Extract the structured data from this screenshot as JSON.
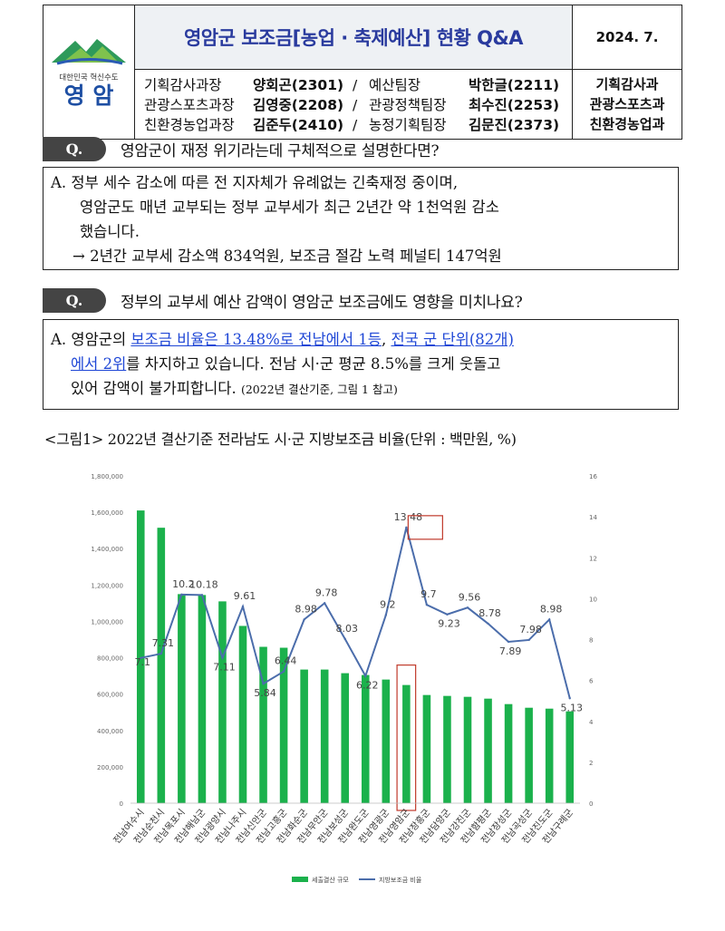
{
  "header": {
    "logo_slogan": "대한민국 혁신수도",
    "logo_name": "영 암",
    "title": "영암군 보조금[농업 · 축제예산] 현황 Q&A",
    "date": "2024. 7.",
    "staff": [
      {
        "dept": "기획감사과장",
        "name": "양회곤(2301)",
        "sep": "/",
        "team": "예산팀장",
        "team_name": "박한글(2211)"
      },
      {
        "dept": "관광스포츠과장",
        "name": "김영중(2208)",
        "sep": "/",
        "team": "관광정책팀장",
        "team_name": "최수진(2253)"
      },
      {
        "dept": "친환경농업과장",
        "name": "김준두(2410)",
        "sep": "/",
        "team": "농정기획팀장",
        "team_name": "김문진(2373)"
      }
    ],
    "departments": [
      "기획감사과",
      "관광스포츠과",
      "친환경농업과"
    ]
  },
  "qa": [
    {
      "q_label": "Q.",
      "question": "영암군이 재정 위기라는데 구체적으로 설명한다면?",
      "answer_lines": [
        "A.  정부 세수 감소에 따른 전 지자체가 유례없는 긴축재정 중이며,",
        "영암군도 매년 교부되는 정부 교부세가 최근 2년간 약 1천억원 감소",
        "했습니다.",
        "→ 2년간 교부세 감소액 834억원, 보조금 절감 노력 페널티 147억원"
      ]
    },
    {
      "q_label": "Q.",
      "question": "정부의 교부세 예산 감액이 영암군 보조금에도 영향을 미치나요?",
      "answer_parts": {
        "a1": "A. 영암군의 ",
        "link1": "보조금 비율은 13.48%로 전남에서 1등",
        "comma": ", ",
        "link2a": "전국 군 단위(82개)",
        "link2b": "에서 2위",
        "a2": "를 차지하고 있습니다. 전남 시·군 평균 8.5%를 크게 웃돌고",
        "a3": "있어 감액이 불가피합니다.",
        "note": "(2022년 결산기준, 그림 1 참고)"
      }
    }
  ],
  "figure_caption": "<그림1> 2022년 결산기준 전라남도 시·군 지방보조금 비율(단위 : 백만원, %)",
  "chart_data": {
    "type": "bar",
    "categories": [
      "전남여수시",
      "전남순천시",
      "전남목포시",
      "전남해남군",
      "전남광양시",
      "전남나주시",
      "전남신안군",
      "전남고흥군",
      "전남화순군",
      "전남무안군",
      "전남보성군",
      "전남완도군",
      "전남영광군",
      "전남영암군",
      "전남장흥군",
      "전남담양군",
      "전남강진군",
      "전남함평군",
      "전남장성군",
      "전남곡성군",
      "전남진도군",
      "전남구례군"
    ],
    "series": [
      {
        "name": "세출결산 규모",
        "type": "bar",
        "axis": "left",
        "color": "#1bb14c",
        "values": [
          1610000,
          1515000,
          1150000,
          1145000,
          1110000,
          975000,
          860000,
          855000,
          735000,
          735000,
          715000,
          705000,
          680000,
          650000,
          595000,
          590000,
          585000,
          575000,
          545000,
          525000,
          520000,
          505000
        ]
      },
      {
        "name": "지방보조금 비율",
        "type": "line",
        "axis": "right",
        "color": "#4b6dab",
        "values": [
          7.1,
          7.31,
          10.2,
          10.18,
          7.11,
          9.61,
          5.84,
          6.44,
          8.98,
          9.78,
          8.03,
          6.22,
          9.2,
          13.48,
          9.7,
          9.23,
          9.56,
          8.78,
          7.89,
          7.98,
          8.98,
          5.13
        ]
      }
    ],
    "line_labels": [
      "7.1",
      "7.31",
      "10.2",
      "10.18",
      "7.11",
      "9.61",
      "5.84",
      "6.44",
      "8.98",
      "9.78",
      "8.03",
      "6.22",
      "9.2",
      "13.48",
      "9.7",
      "9.23",
      "9.56",
      "8.78",
      "7.89",
      "7.98",
      "8.98",
      "5.13"
    ],
    "y_left": {
      "min": 0,
      "max": 1800000,
      "ticks": [
        "0",
        "200,000",
        "400,000",
        "600,000",
        "800,000",
        "1,000,000",
        "1,200,000",
        "1,400,000",
        "1,600,000",
        "1,800,000"
      ]
    },
    "y_right": {
      "min": 0,
      "max": 16,
      "ticks": [
        "0",
        "2",
        "4",
        "6",
        "8",
        "10",
        "12",
        "14",
        "16"
      ]
    },
    "highlight_category": "전남영암군",
    "legend_position": "bottom-center"
  }
}
